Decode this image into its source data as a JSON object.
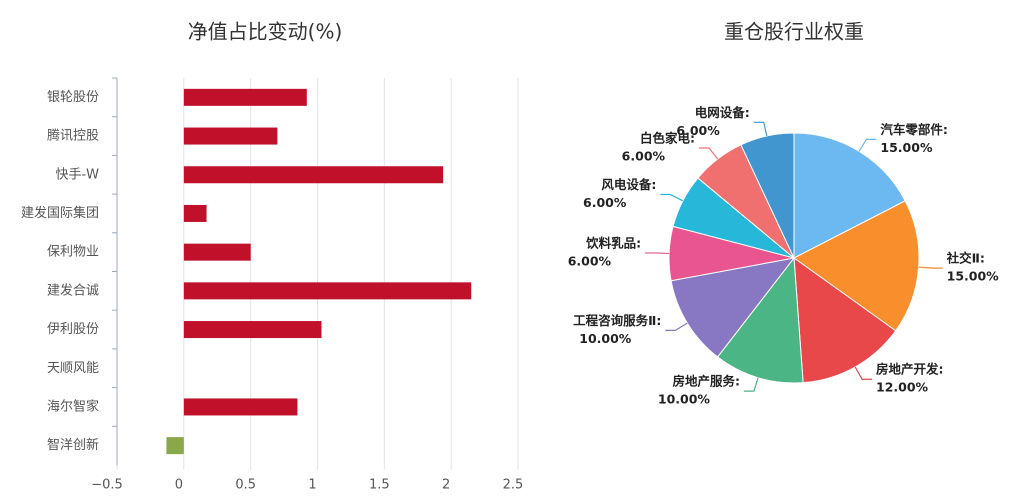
{
  "chart_data": [
    {
      "type": "bar",
      "orientation": "horizontal",
      "title": "净值占比变动(%)",
      "categories": [
        "银轮股份",
        "腾讯控股",
        "快手-W",
        "建发国际集团",
        "保利物业",
        "建发合诚",
        "伊利股份",
        "天顺风能",
        "海尔智家",
        "智洋创新"
      ],
      "values": [
        0.92,
        0.7,
        1.94,
        0.17,
        0.5,
        2.15,
        1.03,
        0,
        0.85,
        -0.13
      ],
      "color": "#c0102a",
      "negative_color": "#8aa84a",
      "xlim": [
        -0.5,
        2.5
      ],
      "xticks": [
        {
          "value": -0.5,
          "label": "−0.5"
        },
        0,
        0.5,
        1,
        1.5,
        2,
        2.5
      ],
      "grid": true
    },
    {
      "type": "pie",
      "title": "重仓股行业权重",
      "categories": [
        "汽车零部件:",
        "社交Ⅱ:",
        "房地产开发:",
        "房地产服务:",
        "工程咨询服务Ⅱ:",
        "饮料乳品:",
        "风电设备:",
        "白色家电:",
        "电网设备:"
      ],
      "values": [
        15,
        15,
        12,
        10,
        10,
        6,
        6,
        6,
        6
      ],
      "value_labels": [
        "15.00%",
        "15.00%",
        "12.00%",
        "10.00%",
        "10.00%",
        "6.00%",
        "6.00%",
        "6.00%",
        "6.00%"
      ],
      "colors": [
        "#6cb8f0",
        "#f98e2c",
        "#e8484a",
        "#4cb585",
        "#8878c4",
        "#e8558f",
        "#27b7d8",
        "#f07070",
        "#4196d0"
      ]
    }
  ]
}
